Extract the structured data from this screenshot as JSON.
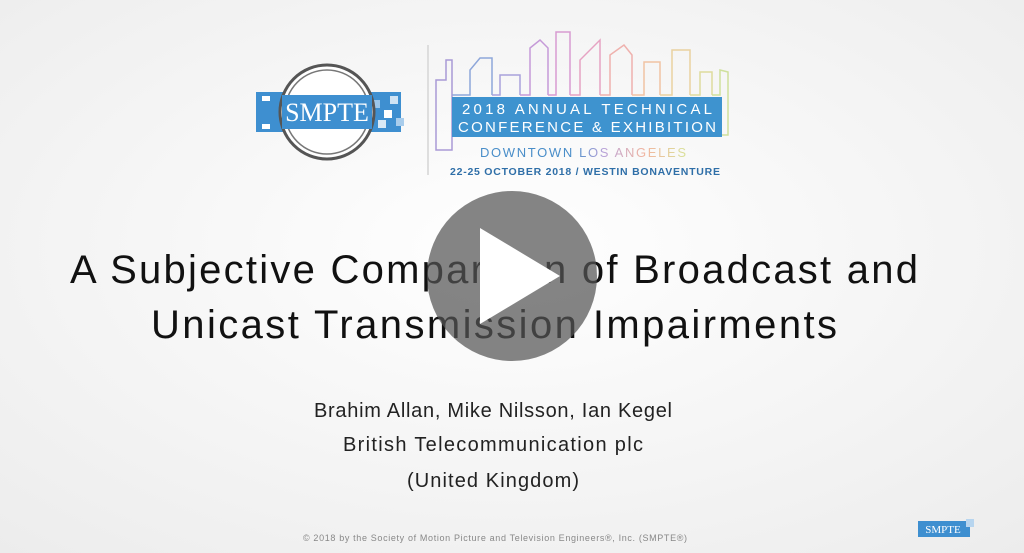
{
  "logo": {
    "text": "SMPTE"
  },
  "conference": {
    "line1": "2018 ANNUAL TECHNICAL",
    "line2": "CONFERENCE & EXHIBITION",
    "location": "DOWNTOWN LOS ANGELES",
    "dates": "22-25 OCTOBER 2018 / WESTIN BONAVENTURE"
  },
  "slide": {
    "title_lines": [
      "A Subjective Comparison of Broadcast and",
      "Unicast Transmission Impairments"
    ],
    "authors": "Brahim Allan, Mike Nilsson, Ian Kegel",
    "organization": "British Telecommunication plc",
    "country": "(United Kingdom)"
  },
  "footer": {
    "copyright": "© 2018  by the Society of Motion Picture and Television Engineers®, Inc. (SMPTE®)",
    "logo_text": "SMPTE"
  }
}
